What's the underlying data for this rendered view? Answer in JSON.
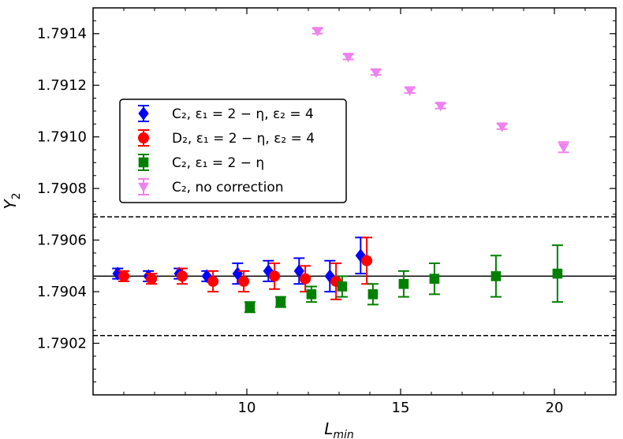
{
  "chart_data": {
    "type": "scatter",
    "title": "",
    "xlabel": "L",
    "xlabel_sub": "min",
    "ylabel": "Y",
    "ylabel_sub": "2",
    "xlim": [
      5,
      22
    ],
    "ylim": [
      1.79,
      1.7915
    ],
    "x_ticks": [
      10,
      15,
      20
    ],
    "x_tick_labels": [
      "10",
      "15",
      "20"
    ],
    "y_ticks": [
      1.7902,
      1.7904,
      1.7906,
      1.7908,
      1.791,
      1.7912,
      1.7914
    ],
    "y_tick_labels": [
      "1.7902",
      "1.7904",
      "1.7906",
      "1.7908",
      "1.7910",
      "1.7912",
      "1.7914"
    ],
    "legend_position": "center-left",
    "reference_lines": [
      {
        "name": "central",
        "y": 1.79046,
        "style": "solid"
      },
      {
        "name": "upper",
        "y": 1.79069,
        "style": "dashed"
      },
      {
        "name": "lower",
        "y": 1.79023,
        "style": "dashed"
      }
    ],
    "series": [
      {
        "name": "C2-eps1-eps2",
        "legend_text": "C₂, ε₁ = 2 − η, ε₂ = 4",
        "color": "#0000ff",
        "marker": "diamond",
        "points": [
          {
            "x": 5.8,
            "y": 1.79047,
            "err": 2e-05
          },
          {
            "x": 6.8,
            "y": 1.79046,
            "err": 2e-05
          },
          {
            "x": 7.8,
            "y": 1.79047,
            "err": 2e-05
          },
          {
            "x": 8.7,
            "y": 1.79046,
            "err": 2e-05
          },
          {
            "x": 9.7,
            "y": 1.79047,
            "err": 4e-05
          },
          {
            "x": 10.7,
            "y": 1.79048,
            "err": 4e-05
          },
          {
            "x": 11.7,
            "y": 1.79048,
            "err": 5e-05
          },
          {
            "x": 12.7,
            "y": 1.79046,
            "err": 6e-05
          },
          {
            "x": 13.7,
            "y": 1.79054,
            "err": 7e-05
          }
        ]
      },
      {
        "name": "D2-eps1-eps2",
        "legend_text": "D₂, ε₁ = 2 − η, ε₂ = 4",
        "color": "#ff0000",
        "marker": "circle",
        "points": [
          {
            "x": 6.0,
            "y": 1.79046,
            "err": 2e-05
          },
          {
            "x": 6.9,
            "y": 1.79045,
            "err": 2e-05
          },
          {
            "x": 7.9,
            "y": 1.79046,
            "err": 3e-05
          },
          {
            "x": 8.9,
            "y": 1.79044,
            "err": 4e-05
          },
          {
            "x": 9.9,
            "y": 1.79044,
            "err": 4e-05
          },
          {
            "x": 10.9,
            "y": 1.79046,
            "err": 5e-05
          },
          {
            "x": 11.9,
            "y": 1.79045,
            "err": 5e-05
          },
          {
            "x": 12.9,
            "y": 1.79044,
            "err": 7e-05
          },
          {
            "x": 13.9,
            "y": 1.79052,
            "err": 9e-05
          }
        ]
      },
      {
        "name": "C2-eps1",
        "legend_text": "C₂, ε₁ = 2 − η",
        "color": "#008000",
        "marker": "square",
        "points": [
          {
            "x": 10.1,
            "y": 1.79034,
            "err": 2e-05
          },
          {
            "x": 11.1,
            "y": 1.79036,
            "err": 2e-05
          },
          {
            "x": 12.1,
            "y": 1.79039,
            "err": 3e-05
          },
          {
            "x": 13.1,
            "y": 1.79042,
            "err": 4e-05
          },
          {
            "x": 14.1,
            "y": 1.79039,
            "err": 4e-05
          },
          {
            "x": 15.1,
            "y": 1.79043,
            "err": 5e-05
          },
          {
            "x": 16.1,
            "y": 1.79045,
            "err": 6e-05
          },
          {
            "x": 18.1,
            "y": 1.79046,
            "err": 8e-05
          },
          {
            "x": 20.1,
            "y": 1.79047,
            "err": 0.00011
          }
        ]
      },
      {
        "name": "C2-no-correction",
        "legend_text": "C₂, no correction",
        "color": "#ee82ee",
        "marker": "triangle-down",
        "points": [
          {
            "x": 12.3,
            "y": 1.79141,
            "err": 1e-05
          },
          {
            "x": 13.3,
            "y": 1.79131,
            "err": 1e-05
          },
          {
            "x": 14.2,
            "y": 1.79125,
            "err": 1e-05
          },
          {
            "x": 15.3,
            "y": 1.79118,
            "err": 1e-05
          },
          {
            "x": 16.3,
            "y": 1.79112,
            "err": 1e-05
          },
          {
            "x": 18.3,
            "y": 1.79104,
            "err": 1e-05
          },
          {
            "x": 20.3,
            "y": 1.79096,
            "err": 2e-05
          }
        ]
      }
    ]
  }
}
